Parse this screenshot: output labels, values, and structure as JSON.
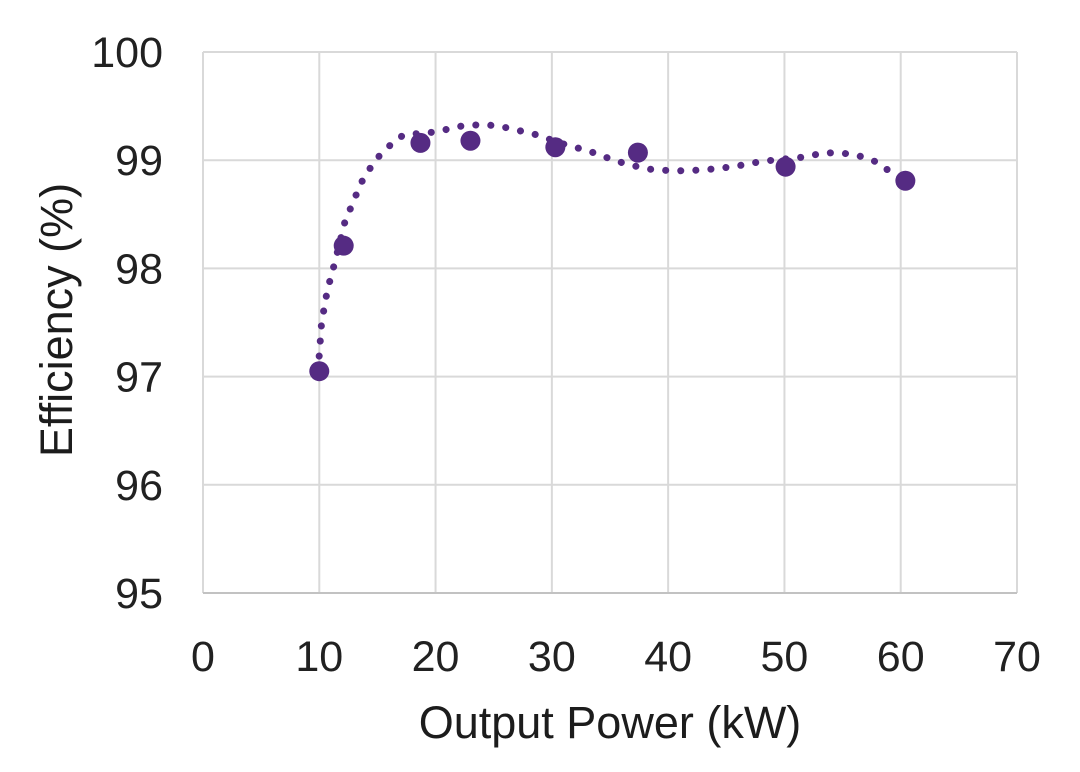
{
  "chart_data": {
    "type": "scatter",
    "title": "",
    "xlabel": "Output Power (kW)",
    "ylabel": "Efficiency (%)",
    "xlim": [
      0,
      70
    ],
    "ylim": [
      95,
      100
    ],
    "x_ticks": [
      0,
      10,
      20,
      30,
      40,
      50,
      60,
      70
    ],
    "y_ticks": [
      95,
      96,
      97,
      98,
      99,
      100
    ],
    "grid": true,
    "legend": false,
    "colors": {
      "accent_purple": "#552b83",
      "gridline": "#d9d9d9",
      "axis_line": "#c2c2c2",
      "text": "#212121",
      "background": "#ffffff"
    },
    "series": [
      {
        "name": "efficiency-points",
        "type": "scatter",
        "marker_color": "#552b83",
        "points": [
          [
            10,
            97.05
          ],
          [
            12.1,
            98.21
          ],
          [
            18.7,
            99.16
          ],
          [
            23,
            99.18
          ],
          [
            30.3,
            99.12
          ],
          [
            37.4,
            99.07
          ],
          [
            50.1,
            98.94
          ],
          [
            60.4,
            98.81
          ]
        ]
      },
      {
        "name": "trendline",
        "type": "dotted-line",
        "color": "#552b83",
        "points": [
          [
            9.9,
            97.05
          ],
          [
            10.2,
            97.5
          ],
          [
            10.7,
            97.8
          ],
          [
            11.3,
            98.04
          ],
          [
            12.2,
            98.43
          ],
          [
            13.6,
            98.79
          ],
          [
            14.8,
            99.0
          ],
          [
            16.3,
            99.16
          ],
          [
            17.2,
            99.23
          ],
          [
            18.7,
            99.25
          ],
          [
            19.9,
            99.26
          ],
          [
            21.2,
            99.29
          ],
          [
            22.4,
            99.32
          ],
          [
            24.3,
            99.33
          ],
          [
            26.1,
            99.3
          ],
          [
            28.5,
            99.24
          ],
          [
            31,
            99.15
          ],
          [
            33.3,
            99.08
          ],
          [
            35.6,
            98.99
          ],
          [
            38.1,
            98.92
          ],
          [
            40.6,
            98.9
          ],
          [
            43.1,
            98.91
          ],
          [
            45.6,
            98.94
          ],
          [
            48.1,
            98.99
          ],
          [
            51.7,
            99.03
          ],
          [
            53.5,
            99.07
          ],
          [
            55.5,
            99.06
          ],
          [
            56.8,
            99.03
          ],
          [
            58,
            98.98
          ],
          [
            59,
            98.9
          ],
          [
            60.4,
            98.8
          ]
        ]
      }
    ]
  }
}
